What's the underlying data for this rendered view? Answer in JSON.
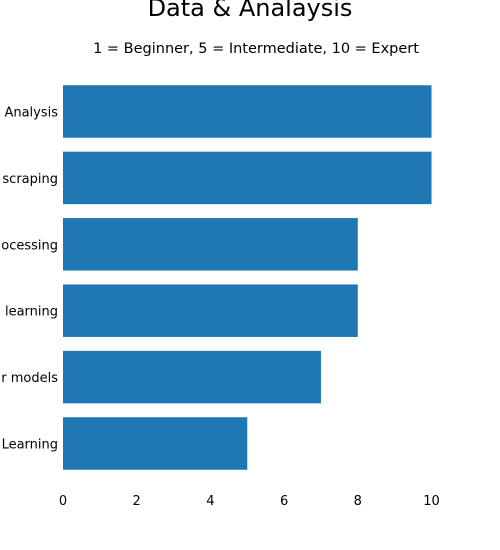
{
  "chart_data": {
    "type": "bar",
    "orientation": "horizontal",
    "title": "Data & Analaysis",
    "subtitle": "1 = Beginner, 5 = Intermediate, 10 = Expert",
    "xlabel": "",
    "ylabel": "",
    "categories": [
      "Analysis",
      "scraping",
      "ocessing",
      "learning",
      "r models",
      "Learning"
    ],
    "values": [
      10,
      10,
      8,
      8,
      7,
      5
    ],
    "xlim": [
      0,
      10
    ],
    "xticks": [
      0,
      2,
      4,
      6,
      8,
      10
    ],
    "grid": false,
    "legend": "none",
    "bar_color": "#1f77b4"
  }
}
